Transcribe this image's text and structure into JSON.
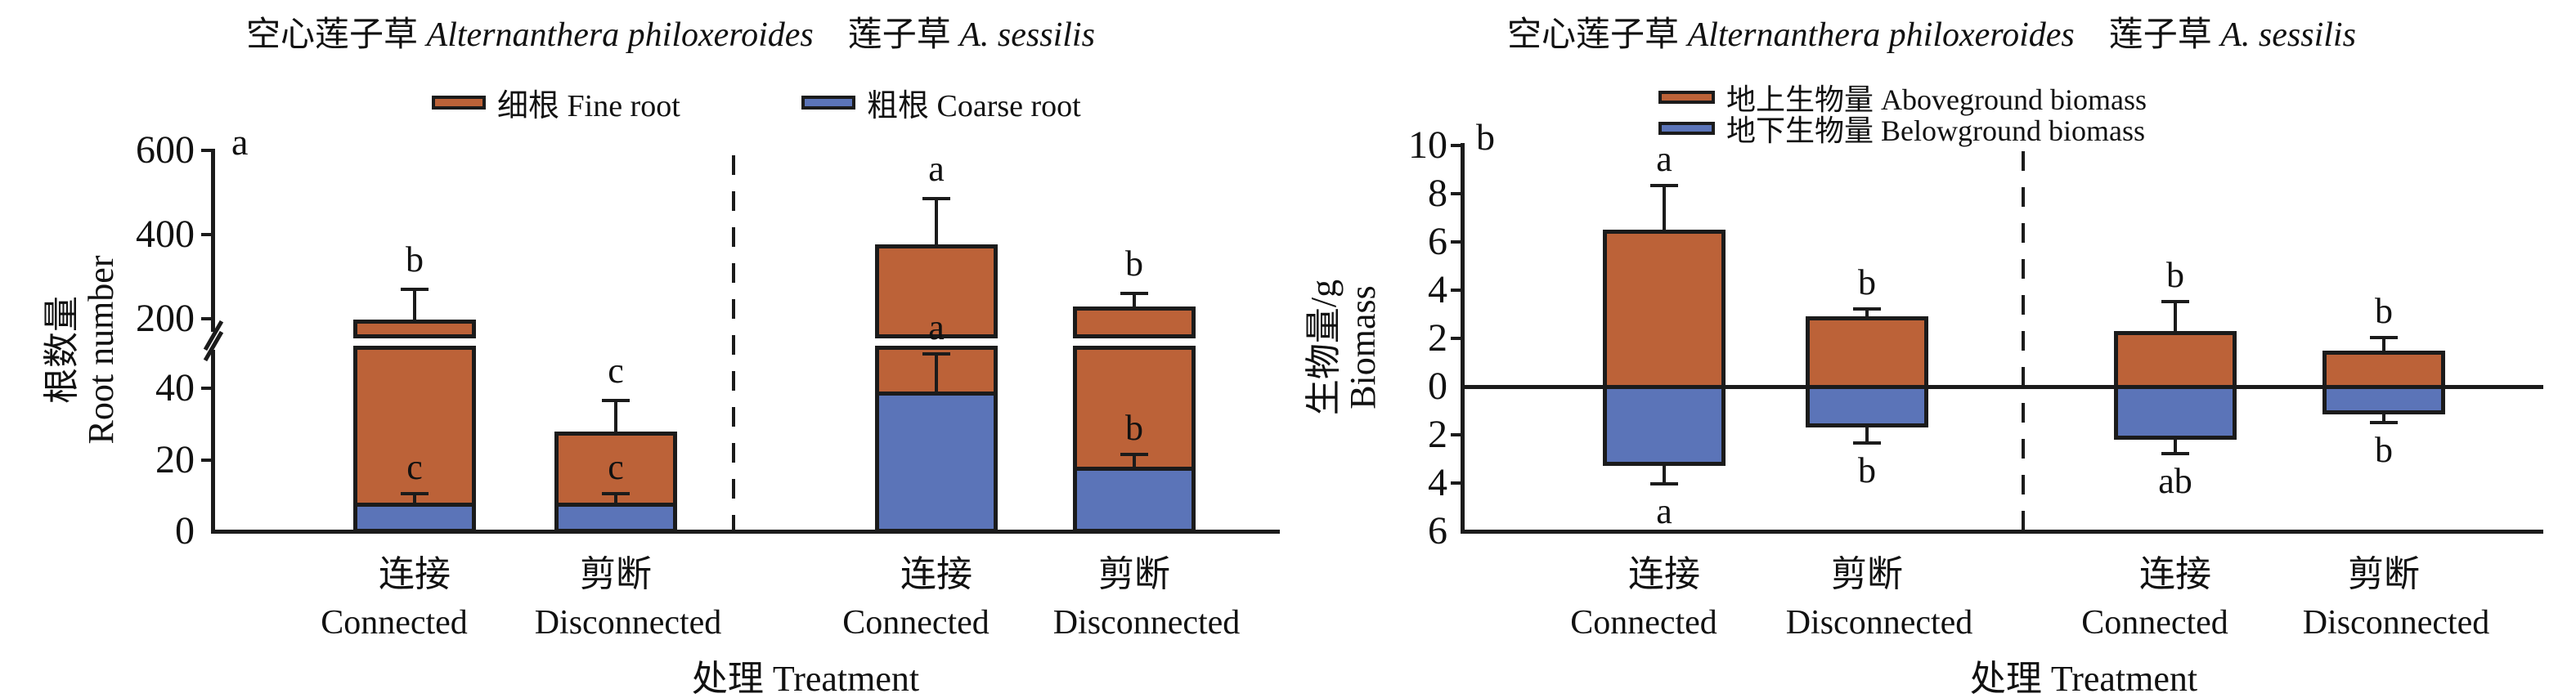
{
  "figure": {
    "background": "#ffffff",
    "line_color": "#1b1b1b",
    "panels": [
      {
        "panel_letter": "a",
        "title_parts": [
          {
            "text": "空心莲子草 ",
            "italic": false
          },
          {
            "text": "Alternanthera philoxeroides",
            "italic": true
          },
          {
            "text": "　莲子草 ",
            "italic": false
          },
          {
            "text": "A. sessilis",
            "italic": true
          }
        ],
        "legend": [
          {
            "label": "细根 Fine root",
            "color": "#bc6238"
          },
          {
            "label": "粗根 Coarse root",
            "color": "#5b74b8"
          }
        ],
        "y_axis": {
          "label_zh": "根数量",
          "label_en": "Root number",
          "tick_labels_upper": [
            "600",
            "400",
            "200"
          ],
          "tick_labels_lower": [
            "40",
            "20",
            "0"
          ],
          "broken": true
        },
        "x_axis": {
          "tick_labels_zh": [
            "连接",
            "剪断",
            "连接",
            "剪断"
          ],
          "tick_labels_en": [
            "Connected",
            "Disconnected",
            "Connected",
            "Disconnected"
          ],
          "axis_label": "处理 Treatment"
        }
      },
      {
        "panel_letter": "b",
        "title_parts": [
          {
            "text": "空心莲子草 ",
            "italic": false
          },
          {
            "text": "Alternanthera philoxeroides",
            "italic": true
          },
          {
            "text": "　莲子草 ",
            "italic": false
          },
          {
            "text": "A. sessilis",
            "italic": true
          }
        ],
        "legend": [
          {
            "label": "地上生物量 Aboveground biomass",
            "color": "#bc6238"
          },
          {
            "label": "地下生物量 Belowground biomass",
            "color": "#5b74b8"
          }
        ],
        "y_axis": {
          "label_zh": "生物量/g",
          "label_en": "Biomass",
          "tick_labels_upper": [
            "10",
            "8",
            "6",
            "4",
            "2",
            "0"
          ],
          "tick_labels_lower": [
            "2",
            "4",
            "6"
          ],
          "broken": false
        },
        "x_axis": {
          "tick_labels_zh": [
            "连接",
            "剪断",
            "连接",
            "剪断"
          ],
          "tick_labels_en": [
            "Connected",
            "Disconnected",
            "Connected",
            "Disconnected"
          ],
          "axis_label": "处理 Treatment"
        }
      }
    ]
  },
  "chart_data": [
    {
      "type": "bar",
      "stacked": true,
      "title": "空心莲子草 Alternanthera philoxeroides　莲子草 A. sessilis",
      "ylabel": "根数量 Root number",
      "xlabel": "处理 Treatment",
      "axis_break": {
        "lower_ylim": [
          0,
          50
        ],
        "upper_ylim": [
          160,
          600
        ]
      },
      "categories": [
        "连接 Connected (空心莲子草 A. philoxeroides)",
        "剪断 Disconnected (空心莲子草 A. philoxeroides)",
        "连接 Connected (莲子草 A. sessilis)",
        "剪断 Disconnected (莲子草 A. sessilis)"
      ],
      "series": [
        {
          "name": "粗根 Coarse root",
          "color": "#5b74b8",
          "values": [
            8,
            8,
            39,
            18
          ],
          "error_plus": [
            3,
            3,
            11,
            4
          ],
          "sig_letters": [
            "c",
            "c",
            "a",
            "b"
          ]
        },
        {
          "name": "细根 Fine root",
          "color": "#bc6238",
          "values": [
            190,
            20,
            338,
            212
          ]
        }
      ],
      "stack_totals": [
        198,
        28,
        377,
        230
      ],
      "stack_total_error_plus": [
        75,
        9,
        112,
        35
      ],
      "stack_total_sig_letters": [
        "b",
        "c",
        "a",
        "b"
      ],
      "legend_position": "top",
      "grid": false
    },
    {
      "type": "bar",
      "diverging": true,
      "title": "空心莲子草 Alternanthera philoxeroides　莲子草 A. sessilis",
      "ylabel": "生物量/g Biomass",
      "xlabel": "处理 Treatment",
      "ylim": [
        -6,
        10
      ],
      "categories": [
        "连接 Connected (空心莲子草 A. philoxeroides)",
        "剪断 Disconnected (空心莲子草 A. philoxeroides)",
        "连接 Connected (莲子草 A. sessilis)",
        "剪断 Disconnected (莲子草 A. sessilis)"
      ],
      "series": [
        {
          "name": "地上生物量 Aboveground biomass",
          "color": "#bc6238",
          "values": [
            6.5,
            2.9,
            2.3,
            1.5
          ],
          "error_plus": [
            1.9,
            0.4,
            1.3,
            0.6
          ],
          "sig_letters": [
            "a",
            "b",
            "b",
            "b"
          ]
        },
        {
          "name": "地下生物量 Belowground biomass",
          "color": "#5b74b8",
          "values": [
            -3.3,
            -1.7,
            -2.2,
            -1.15
          ],
          "error_plus": [
            0.8,
            0.7,
            0.65,
            0.4
          ],
          "sig_letters": [
            "a",
            "b",
            "ab",
            "b"
          ]
        }
      ],
      "legend_position": "top",
      "grid": false
    }
  ]
}
